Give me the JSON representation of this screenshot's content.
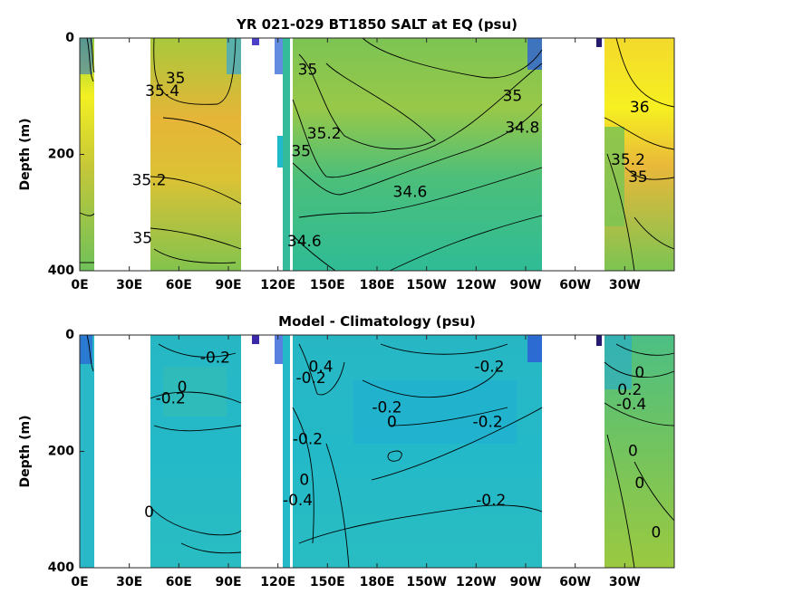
{
  "chart_data": [
    {
      "type": "heatmap",
      "title": "YR 021-029 BT1850 SALT at EQ (psu)",
      "ylabel": "Depth (m)",
      "xlabel": "",
      "ylim": [
        0,
        400
      ],
      "y_reversed": true,
      "x_tick_labels": [
        "0E",
        "30E",
        "60E",
        "90E",
        "120E",
        "150E",
        "180E",
        "150W",
        "120W",
        "90W",
        "60W",
        "30W"
      ],
      "y_tick_labels": [
        "0",
        "200",
        "400"
      ],
      "contour_labels": [
        {
          "text": "35",
          "lon": 58,
          "depth": 70
        },
        {
          "text": "35.4",
          "lon": 50,
          "depth": 92
        },
        {
          "text": "35.2",
          "lon": 42,
          "depth": 245
        },
        {
          "text": "35",
          "lon": 38,
          "depth": 345
        },
        {
          "text": "35",
          "lon": 138,
          "depth": 55
        },
        {
          "text": "35.2",
          "lon": 148,
          "depth": 165
        },
        {
          "text": "35",
          "lon": 134,
          "depth": 195
        },
        {
          "text": "34.6",
          "lon": 136,
          "depth": 350
        },
        {
          "text": "34.6",
          "lon": 200,
          "depth": 265
        },
        {
          "text": "35",
          "lon": 262,
          "depth": 100
        },
        {
          "text": "34.8",
          "lon": 268,
          "depth": 155
        },
        {
          "text": "36",
          "lon": 339,
          "depth": 120
        },
        {
          "text": "35.2",
          "lon": 332,
          "depth": 210
        },
        {
          "text": "35",
          "lon": 338,
          "depth": 240
        }
      ],
      "colors": {
        "low": "#3d4fd8",
        "mid": "#1fb9c9",
        "high": "#f9fb1e"
      }
    },
    {
      "type": "heatmap",
      "title": "Model - Climatology (psu)",
      "ylabel": "Depth (m)",
      "xlabel": "",
      "ylim": [
        0,
        400
      ],
      "y_reversed": true,
      "x_tick_labels": [
        "0E",
        "30E",
        "60E",
        "90E",
        "120E",
        "150E",
        "180E",
        "150W",
        "120W",
        "90W",
        "60W",
        "30W"
      ],
      "y_tick_labels": [
        "0",
        "200",
        "400"
      ],
      "contour_labels": [
        {
          "text": "-0.2",
          "lon": 82,
          "depth": 40
        },
        {
          "text": "0",
          "lon": 62,
          "depth": 90
        },
        {
          "text": "-0.2",
          "lon": 55,
          "depth": 110
        },
        {
          "text": "0",
          "lon": 42,
          "depth": 305
        },
        {
          "text": "0.4",
          "lon": 146,
          "depth": 55
        },
        {
          "text": "-0.2",
          "lon": 140,
          "depth": 75
        },
        {
          "text": "-0.2",
          "lon": 186,
          "depth": 125
        },
        {
          "text": "0",
          "lon": 189,
          "depth": 150
        },
        {
          "text": "-0.2",
          "lon": 138,
          "depth": 180
        },
        {
          "text": "0",
          "lon": 136,
          "depth": 250
        },
        {
          "text": "-0.4",
          "lon": 132,
          "depth": 285
        },
        {
          "text": "-0.2",
          "lon": 248,
          "depth": 55
        },
        {
          "text": "-0.2",
          "lon": 247,
          "depth": 150
        },
        {
          "text": "-0.2",
          "lon": 249,
          "depth": 285
        },
        {
          "text": "0.2",
          "lon": 333,
          "depth": 95
        },
        {
          "text": "-0.4",
          "lon": 334,
          "depth": 120
        },
        {
          "text": "0",
          "lon": 339,
          "depth": 65
        },
        {
          "text": "0",
          "lon": 335,
          "depth": 200
        },
        {
          "text": "0",
          "lon": 339,
          "depth": 255
        },
        {
          "text": "0",
          "lon": 349,
          "depth": 340
        }
      ],
      "colors": {
        "low": "#3d4fd8",
        "mid": "#1fb9c9",
        "high": "#f9fb1e"
      }
    }
  ]
}
